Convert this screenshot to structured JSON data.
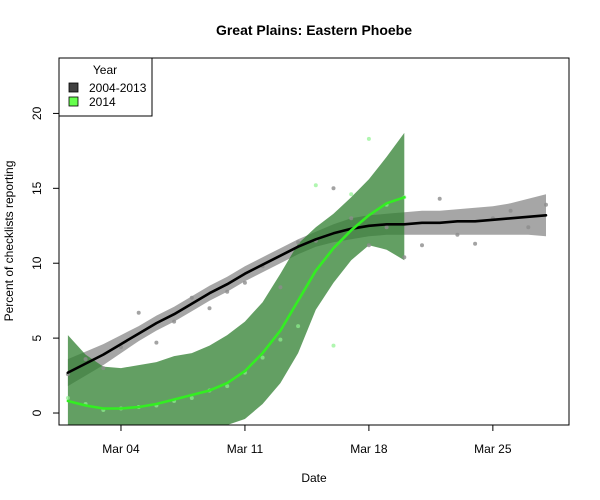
{
  "chart_data": {
    "type": "line",
    "title": "Great Plains: Eastern Phoebe",
    "xlabel": "Date",
    "ylabel": "Percent of checklists reporting",
    "x_ticks": [
      {
        "day": 4,
        "label": "Mar 04"
      },
      {
        "day": 11,
        "label": "Mar 11"
      },
      {
        "day": 18,
        "label": "Mar 18"
      },
      {
        "day": 25,
        "label": "Mar 25"
      }
    ],
    "y_ticks": [
      0,
      5,
      10,
      15,
      20
    ],
    "xlim": [
      0.5,
      29.3
    ],
    "ylim": [
      -0.8,
      23.7
    ],
    "legend": {
      "title": "Year",
      "position": "top-left",
      "entries": [
        {
          "label": "2004-2013",
          "color": "#404040"
        },
        {
          "label": "2014",
          "color": "#66ff4d"
        }
      ]
    },
    "series": [
      {
        "name": "2004-2013",
        "color": "#000000",
        "band_color": "#808080",
        "points": [
          {
            "x": 1,
            "y": 2.6
          },
          {
            "x": 2,
            "y": 3.6
          },
          {
            "x": 3,
            "y": 3.0
          },
          {
            "x": 4,
            "y": 4.4
          },
          {
            "x": 5,
            "y": 6.7
          },
          {
            "x": 6,
            "y": 4.7
          },
          {
            "x": 7,
            "y": 6.1
          },
          {
            "x": 8,
            "y": 7.7
          },
          {
            "x": 9,
            "y": 7.0
          },
          {
            "x": 10,
            "y": 8.1
          },
          {
            "x": 11,
            "y": 8.7
          },
          {
            "x": 12,
            "y": 9.8
          },
          {
            "x": 13,
            "y": 8.4
          },
          {
            "x": 14,
            "y": 11.4
          },
          {
            "x": 15,
            "y": 11.5
          },
          {
            "x": 16,
            "y": 15.0
          },
          {
            "x": 17,
            "y": 13.0
          },
          {
            "x": 18,
            "y": 11.2
          },
          {
            "x": 19,
            "y": 12.4
          },
          {
            "x": 20,
            "y": 10.4
          },
          {
            "x": 21,
            "y": 11.2
          },
          {
            "x": 22,
            "y": 14.3
          },
          {
            "x": 23,
            "y": 11.9
          },
          {
            "x": 24,
            "y": 11.3
          },
          {
            "x": 25,
            "y": 13.0
          },
          {
            "x": 26,
            "y": 13.5
          },
          {
            "x": 27,
            "y": 12.4
          },
          {
            "x": 28,
            "y": 13.9
          }
        ],
        "fit": [
          {
            "x": 1,
            "y": 2.7
          },
          {
            "x": 2,
            "y": 3.3
          },
          {
            "x": 3,
            "y": 3.9
          },
          {
            "x": 4,
            "y": 4.6
          },
          {
            "x": 5,
            "y": 5.3
          },
          {
            "x": 6,
            "y": 6.0
          },
          {
            "x": 7,
            "y": 6.6
          },
          {
            "x": 8,
            "y": 7.3
          },
          {
            "x": 9,
            "y": 8.0
          },
          {
            "x": 10,
            "y": 8.6
          },
          {
            "x": 11,
            "y": 9.3
          },
          {
            "x": 12,
            "y": 9.9
          },
          {
            "x": 13,
            "y": 10.5
          },
          {
            "x": 14,
            "y": 11.1
          },
          {
            "x": 15,
            "y": 11.6
          },
          {
            "x": 16,
            "y": 12.0
          },
          {
            "x": 17,
            "y": 12.3
          },
          {
            "x": 18,
            "y": 12.5
          },
          {
            "x": 19,
            "y": 12.6
          },
          {
            "x": 20,
            "y": 12.6
          },
          {
            "x": 21,
            "y": 12.7
          },
          {
            "x": 22,
            "y": 12.7
          },
          {
            "x": 23,
            "y": 12.8
          },
          {
            "x": 24,
            "y": 12.8
          },
          {
            "x": 25,
            "y": 12.9
          },
          {
            "x": 26,
            "y": 13.0
          },
          {
            "x": 27,
            "y": 13.1
          },
          {
            "x": 28,
            "y": 13.2
          }
        ],
        "band_upper": [
          {
            "x": 1,
            "y": 3.6
          },
          {
            "x": 2,
            "y": 4.1
          },
          {
            "x": 3,
            "y": 4.6
          },
          {
            "x": 4,
            "y": 5.2
          },
          {
            "x": 5,
            "y": 5.8
          },
          {
            "x": 6,
            "y": 6.5
          },
          {
            "x": 7,
            "y": 7.1
          },
          {
            "x": 8,
            "y": 7.8
          },
          {
            "x": 9,
            "y": 8.5
          },
          {
            "x": 10,
            "y": 9.1
          },
          {
            "x": 11,
            "y": 9.8
          },
          {
            "x": 12,
            "y": 10.4
          },
          {
            "x": 13,
            "y": 11.0
          },
          {
            "x": 14,
            "y": 11.6
          },
          {
            "x": 15,
            "y": 12.1
          },
          {
            "x": 16,
            "y": 12.6
          },
          {
            "x": 17,
            "y": 13.0
          },
          {
            "x": 18,
            "y": 13.2
          },
          {
            "x": 19,
            "y": 13.3
          },
          {
            "x": 20,
            "y": 13.4
          },
          {
            "x": 21,
            "y": 13.5
          },
          {
            "x": 22,
            "y": 13.5
          },
          {
            "x": 23,
            "y": 13.6
          },
          {
            "x": 24,
            "y": 13.7
          },
          {
            "x": 25,
            "y": 13.8
          },
          {
            "x": 26,
            "y": 14.0
          },
          {
            "x": 27,
            "y": 14.3
          },
          {
            "x": 28,
            "y": 14.6
          }
        ],
        "band_lower": [
          {
            "x": 1,
            "y": 1.8
          },
          {
            "x": 2,
            "y": 2.5
          },
          {
            "x": 3,
            "y": 3.2
          },
          {
            "x": 4,
            "y": 4.0
          },
          {
            "x": 5,
            "y": 4.8
          },
          {
            "x": 6,
            "y": 5.5
          },
          {
            "x": 7,
            "y": 6.1
          },
          {
            "x": 8,
            "y": 6.8
          },
          {
            "x": 9,
            "y": 7.5
          },
          {
            "x": 10,
            "y": 8.1
          },
          {
            "x": 11,
            "y": 8.8
          },
          {
            "x": 12,
            "y": 9.4
          },
          {
            "x": 13,
            "y": 10.0
          },
          {
            "x": 14,
            "y": 10.6
          },
          {
            "x": 15,
            "y": 11.1
          },
          {
            "x": 16,
            "y": 11.4
          },
          {
            "x": 17,
            "y": 11.6
          },
          {
            "x": 18,
            "y": 11.8
          },
          {
            "x": 19,
            "y": 11.9
          },
          {
            "x": 20,
            "y": 11.9
          },
          {
            "x": 21,
            "y": 11.9
          },
          {
            "x": 22,
            "y": 11.9
          },
          {
            "x": 23,
            "y": 11.9
          },
          {
            "x": 24,
            "y": 11.9
          },
          {
            "x": 25,
            "y": 11.9
          },
          {
            "x": 26,
            "y": 11.9
          },
          {
            "x": 27,
            "y": 11.9
          },
          {
            "x": 28,
            "y": 11.8
          }
        ]
      },
      {
        "name": "2014",
        "color": "#33ee22",
        "band_color": "#2f7f2f",
        "points": [
          {
            "x": 1,
            "y": 1.0
          },
          {
            "x": 2,
            "y": 0.6
          },
          {
            "x": 3,
            "y": 0.2
          },
          {
            "x": 4,
            "y": 0.3
          },
          {
            "x": 5,
            "y": 0.4
          },
          {
            "x": 6,
            "y": 0.5
          },
          {
            "x": 7,
            "y": 0.8
          },
          {
            "x": 8,
            "y": 1.0
          },
          {
            "x": 9,
            "y": 1.5
          },
          {
            "x": 10,
            "y": 1.8
          },
          {
            "x": 11,
            "y": 2.7
          },
          {
            "x": 12,
            "y": 3.7
          },
          {
            "x": 13,
            "y": 4.9
          },
          {
            "x": 14,
            "y": 5.8
          },
          {
            "x": 15,
            "y": 15.2
          },
          {
            "x": 16,
            "y": 4.5
          },
          {
            "x": 17,
            "y": 14.6
          },
          {
            "x": 18,
            "y": 18.3
          },
          {
            "x": 19,
            "y": 13.9
          },
          {
            "x": 20,
            "y": 14.4
          }
        ],
        "fit": [
          {
            "x": 1,
            "y": 0.8
          },
          {
            "x": 2,
            "y": 0.5
          },
          {
            "x": 3,
            "y": 0.3
          },
          {
            "x": 4,
            "y": 0.3
          },
          {
            "x": 5,
            "y": 0.4
          },
          {
            "x": 6,
            "y": 0.6
          },
          {
            "x": 7,
            "y": 0.9
          },
          {
            "x": 8,
            "y": 1.2
          },
          {
            "x": 9,
            "y": 1.5
          },
          {
            "x": 10,
            "y": 2.0
          },
          {
            "x": 11,
            "y": 2.8
          },
          {
            "x": 12,
            "y": 4.0
          },
          {
            "x": 13,
            "y": 5.5
          },
          {
            "x": 14,
            "y": 7.5
          },
          {
            "x": 15,
            "y": 9.5
          },
          {
            "x": 16,
            "y": 11.0
          },
          {
            "x": 17,
            "y": 12.2
          },
          {
            "x": 18,
            "y": 13.2
          },
          {
            "x": 19,
            "y": 14.0
          },
          {
            "x": 20,
            "y": 14.4
          }
        ],
        "band_upper": [
          {
            "x": 1,
            "y": 5.2
          },
          {
            "x": 2,
            "y": 3.9
          },
          {
            "x": 3,
            "y": 3.1
          },
          {
            "x": 4,
            "y": 3.0
          },
          {
            "x": 5,
            "y": 3.2
          },
          {
            "x": 6,
            "y": 3.4
          },
          {
            "x": 7,
            "y": 3.8
          },
          {
            "x": 8,
            "y": 4.0
          },
          {
            "x": 9,
            "y": 4.5
          },
          {
            "x": 10,
            "y": 5.2
          },
          {
            "x": 11,
            "y": 6.1
          },
          {
            "x": 12,
            "y": 7.4
          },
          {
            "x": 13,
            "y": 9.3
          },
          {
            "x": 14,
            "y": 11.3
          },
          {
            "x": 15,
            "y": 12.4
          },
          {
            "x": 16,
            "y": 13.3
          },
          {
            "x": 17,
            "y": 14.4
          },
          {
            "x": 18,
            "y": 15.6
          },
          {
            "x": 19,
            "y": 17.1
          },
          {
            "x": 20,
            "y": 18.7
          }
        ],
        "band_lower": [
          {
            "x": 1,
            "y": -0.8
          },
          {
            "x": 2,
            "y": -0.8
          },
          {
            "x": 3,
            "y": -0.8
          },
          {
            "x": 4,
            "y": -0.8
          },
          {
            "x": 5,
            "y": -0.8
          },
          {
            "x": 6,
            "y": -0.8
          },
          {
            "x": 7,
            "y": -0.8
          },
          {
            "x": 8,
            "y": -0.8
          },
          {
            "x": 9,
            "y": -0.8
          },
          {
            "x": 10,
            "y": -0.8
          },
          {
            "x": 11,
            "y": -0.4
          },
          {
            "x": 12,
            "y": 0.6
          },
          {
            "x": 13,
            "y": 2.0
          },
          {
            "x": 14,
            "y": 4.0
          },
          {
            "x": 15,
            "y": 6.9
          },
          {
            "x": 16,
            "y": 8.7
          },
          {
            "x": 17,
            "y": 10.2
          },
          {
            "x": 18,
            "y": 11.2
          },
          {
            "x": 19,
            "y": 10.9
          },
          {
            "x": 20,
            "y": 10.2
          }
        ]
      }
    ]
  }
}
